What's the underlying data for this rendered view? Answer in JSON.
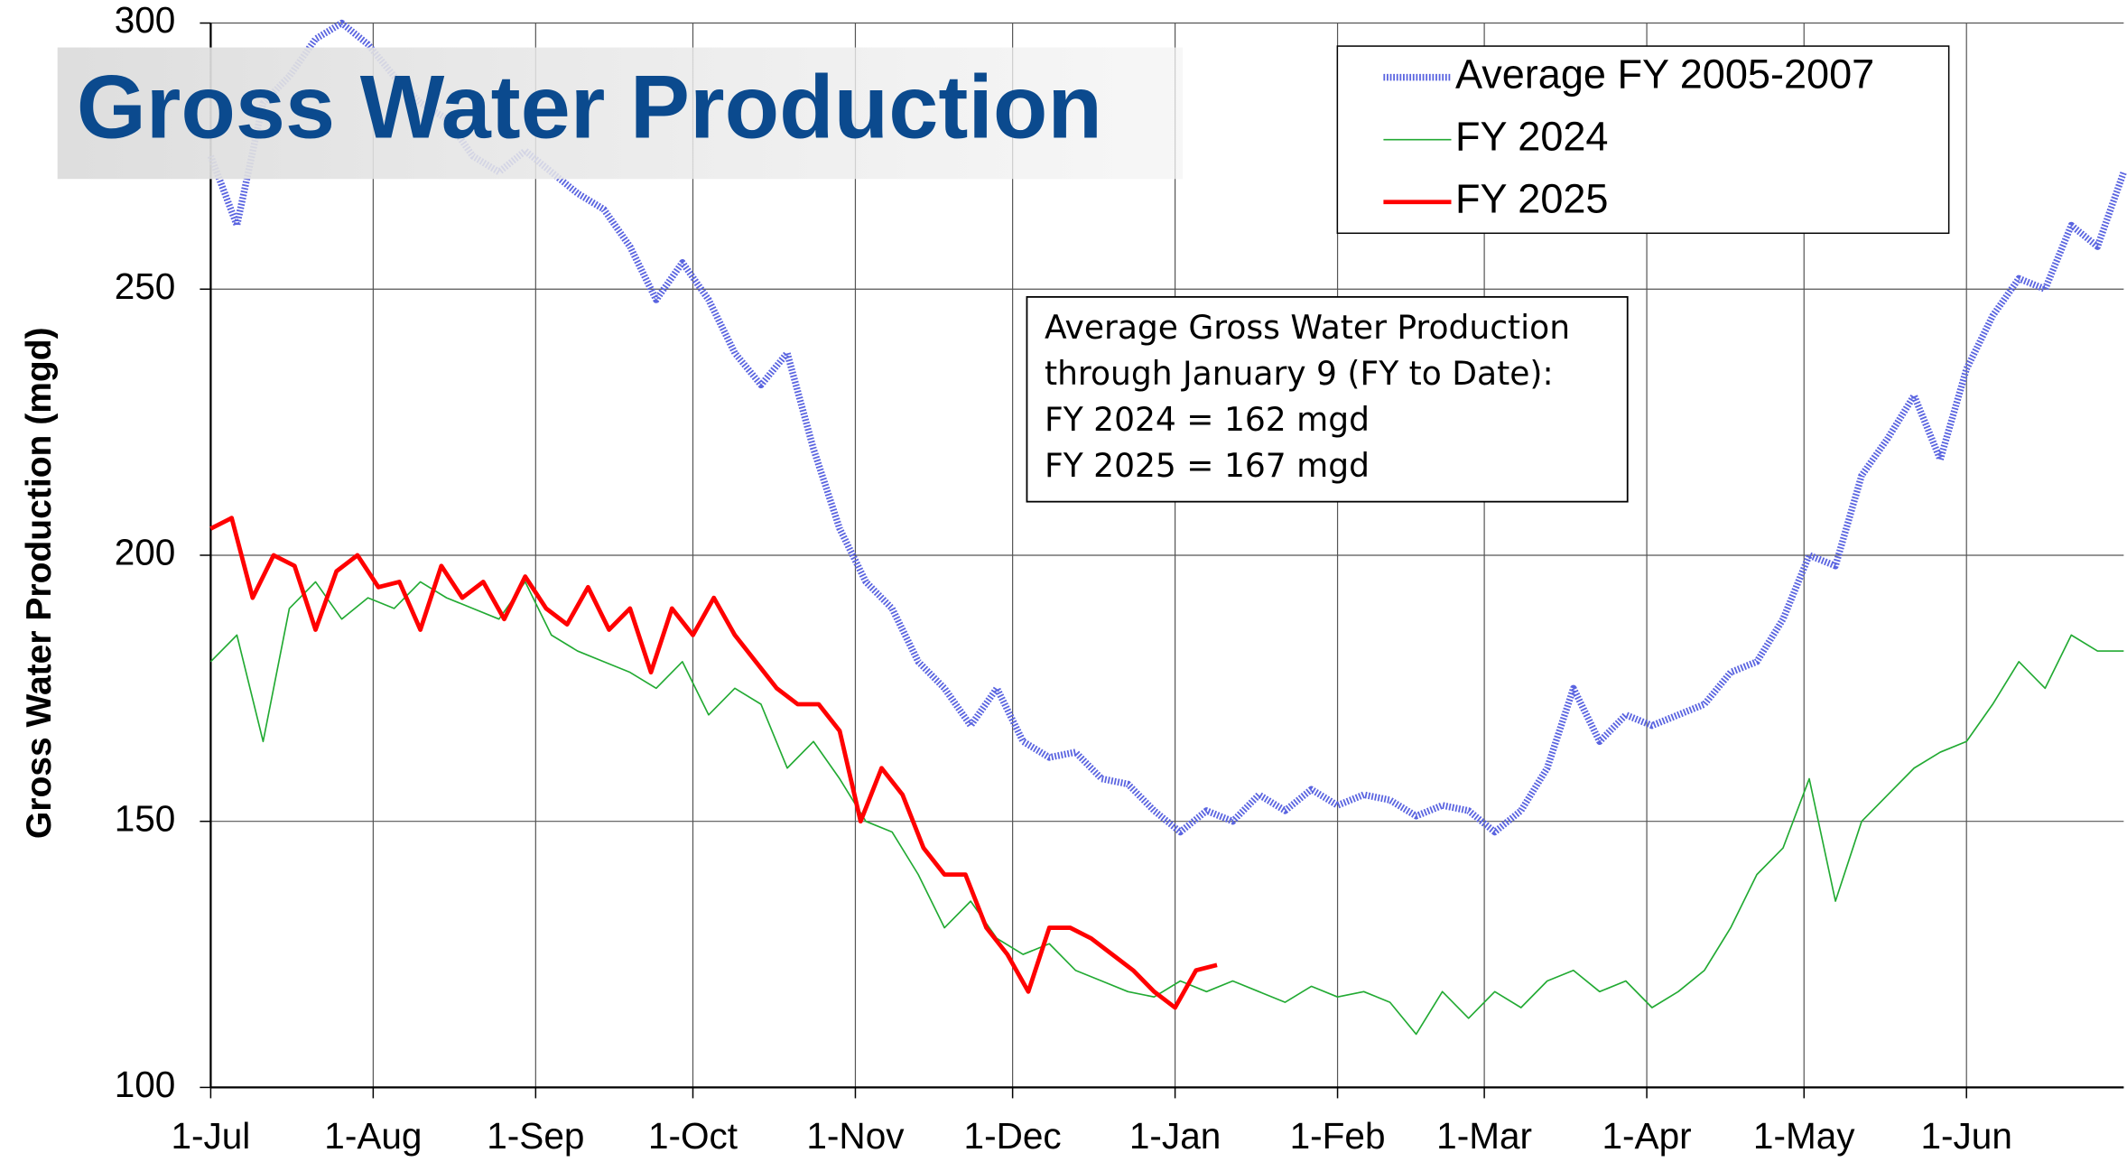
{
  "chart_data": {
    "type": "line",
    "title": "Gross Water Production",
    "y_label": "Gross Water Production (mgd)",
    "annotation": [
      "Average Gross Water Production",
      "through January 9 (FY to Date):",
      "FY 2024 = 162 mgd",
      "FY 2025 = 167 mgd"
    ],
    "xlim": [
      0,
      365
    ],
    "xticks": [
      {
        "value": 0,
        "label": "1-Jul"
      },
      {
        "value": 31,
        "label": "1-Aug"
      },
      {
        "value": 62,
        "label": "1-Sep"
      },
      {
        "value": 92,
        "label": "1-Oct"
      },
      {
        "value": 123,
        "label": "1-Nov"
      },
      {
        "value": 153,
        "label": "1-Dec"
      },
      {
        "value": 184,
        "label": "1-Jan"
      },
      {
        "value": 215,
        "label": "1-Feb"
      },
      {
        "value": 243,
        "label": "1-Mar"
      },
      {
        "value": 274,
        "label": "1-Apr"
      },
      {
        "value": 304,
        "label": "1-May"
      },
      {
        "value": 335,
        "label": "1-Jun"
      }
    ],
    "ylim": [
      100,
      300
    ],
    "yticks": [
      100,
      150,
      200,
      250,
      300
    ],
    "grid": true,
    "legend": "top-right",
    "series": [
      {
        "name": "Average FY 2005-2007",
        "color": "#5a64e0",
        "style": "dotted",
        "x": [
          0,
          5,
          10,
          15,
          20,
          25,
          30,
          35,
          40,
          45,
          50,
          55,
          60,
          65,
          70,
          75,
          80,
          85,
          90,
          95,
          100,
          105,
          110,
          115,
          120,
          125,
          130,
          135,
          140,
          145,
          150,
          155,
          160,
          165,
          170,
          175,
          180,
          185,
          190,
          195,
          200,
          205,
          210,
          215,
          220,
          225,
          230,
          235,
          240,
          245,
          250,
          255,
          260,
          265,
          270,
          275,
          280,
          285,
          290,
          295,
          300,
          305,
          310,
          315,
          320,
          325,
          330,
          335,
          340,
          345,
          350,
          355,
          360,
          365
        ],
        "values": [
          275,
          262,
          285,
          290,
          297,
          300,
          296,
          290,
          285,
          282,
          275,
          272,
          276,
          272,
          268,
          265,
          258,
          248,
          255,
          248,
          238,
          232,
          238,
          220,
          205,
          195,
          190,
          180,
          175,
          168,
          175,
          165,
          162,
          163,
          158,
          157,
          152,
          148,
          152,
          150,
          155,
          152,
          156,
          153,
          155,
          154,
          151,
          153,
          152,
          148,
          152,
          160,
          175,
          165,
          170,
          168,
          170,
          172,
          178,
          180,
          188,
          200,
          198,
          215,
          222,
          230,
          218,
          235,
          245,
          252,
          250,
          262,
          258,
          272
        ]
      },
      {
        "name": "FY 2024",
        "color": "#22aa33",
        "style": "thin",
        "x": [
          0,
          5,
          10,
          15,
          20,
          25,
          30,
          35,
          40,
          45,
          50,
          55,
          60,
          65,
          70,
          75,
          80,
          85,
          90,
          95,
          100,
          105,
          110,
          115,
          120,
          125,
          130,
          135,
          140,
          145,
          150,
          155,
          160,
          165,
          170,
          175,
          180,
          185,
          190,
          195,
          200,
          205,
          210,
          215,
          220,
          225,
          230,
          235,
          240,
          245,
          250,
          255,
          260,
          265,
          270,
          275,
          280,
          285,
          290,
          295,
          300,
          305,
          310,
          315,
          320,
          325,
          330,
          335,
          340,
          345,
          350,
          355,
          360,
          365
        ],
        "values": [
          180,
          185,
          165,
          190,
          195,
          188,
          192,
          190,
          195,
          192,
          190,
          188,
          195,
          185,
          182,
          180,
          178,
          175,
          180,
          170,
          175,
          172,
          160,
          165,
          158,
          150,
          148,
          140,
          130,
          135,
          128,
          125,
          127,
          122,
          120,
          118,
          117,
          120,
          118,
          120,
          118,
          116,
          119,
          117,
          118,
          116,
          110,
          118,
          113,
          118,
          115,
          120,
          122,
          118,
          120,
          115,
          118,
          122,
          130,
          140,
          145,
          158,
          135,
          150,
          155,
          160,
          163,
          165,
          172,
          180,
          175,
          185,
          182,
          182
        ]
      },
      {
        "name": "FY 2025",
        "color": "#ff0000",
        "style": "thick",
        "x": [
          0,
          4,
          8,
          12,
          16,
          20,
          24,
          28,
          32,
          36,
          40,
          44,
          48,
          52,
          56,
          60,
          64,
          68,
          72,
          76,
          80,
          84,
          88,
          92,
          96,
          100,
          104,
          108,
          112,
          116,
          120,
          124,
          128,
          132,
          136,
          140,
          144,
          148,
          152,
          156,
          160,
          164,
          168,
          172,
          176,
          180,
          184,
          188,
          192
        ],
        "values": [
          205,
          207,
          192,
          200,
          198,
          186,
          197,
          200,
          194,
          195,
          186,
          198,
          192,
          195,
          188,
          196,
          190,
          187,
          194,
          186,
          190,
          178,
          190,
          185,
          192,
          185,
          180,
          175,
          172,
          172,
          167,
          150,
          160,
          155,
          145,
          140,
          140,
          130,
          125,
          118,
          130,
          130,
          128,
          125,
          122,
          118,
          115,
          122,
          123
        ]
      }
    ]
  }
}
